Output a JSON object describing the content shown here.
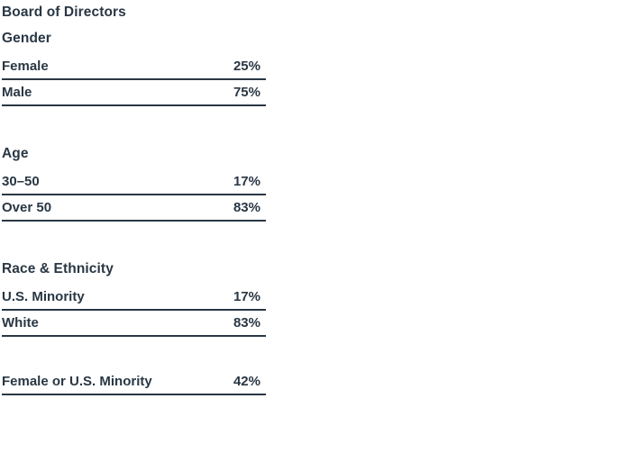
{
  "colors": {
    "text": "#293744",
    "rule": "#293744",
    "background": "#ffffff"
  },
  "chart_data": {
    "type": "table",
    "title": "Board of Directors",
    "layout": {
      "grid": false,
      "value_alignment": "right",
      "rules": "bottom-border-per-row"
    },
    "sections": [
      {
        "header": "Gender",
        "rows": [
          {
            "label": "Female",
            "value": "25%"
          },
          {
            "label": "Male",
            "value": "75%"
          }
        ]
      },
      {
        "header": "Age",
        "rows": [
          {
            "label": "30–50",
            "value": "17%"
          },
          {
            "label": "Over 50",
            "value": "83%"
          }
        ]
      },
      {
        "header": "Race & Ethnicity",
        "rows": [
          {
            "label": "U.S. Minority",
            "value": "17%"
          },
          {
            "label": "White",
            "value": "83%"
          }
        ]
      },
      {
        "header": "",
        "rows": [
          {
            "label": "Female or U.S. Minority",
            "value": "42%"
          }
        ]
      }
    ]
  }
}
